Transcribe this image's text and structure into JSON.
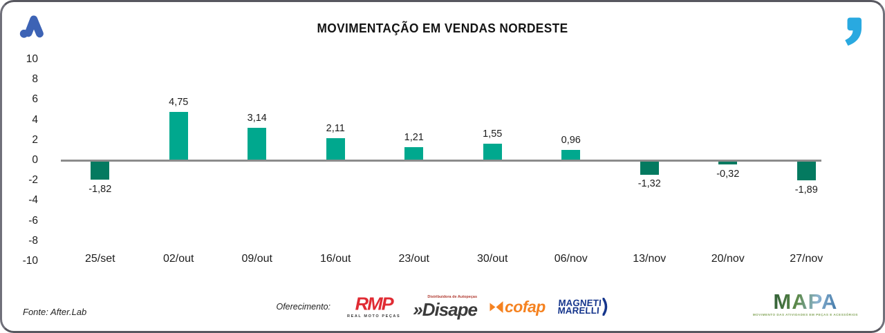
{
  "header": {
    "title": "MOVIMENTAÇÃO EM VENDAS NORDESTE",
    "brand_color": "#3D63B5",
    "quote_color": "#29A9E0"
  },
  "chart_data": {
    "type": "bar",
    "title": "MOVIMENTAÇÃO EM VENDAS NORDESTE",
    "categories": [
      "25/set",
      "02/out",
      "09/out",
      "16/out",
      "23/out",
      "30/out",
      "06/nov",
      "13/nov",
      "20/nov",
      "27/nov"
    ],
    "values": [
      -1.82,
      4.75,
      3.14,
      2.11,
      1.21,
      1.55,
      0.96,
      -1.32,
      -0.32,
      -1.89
    ],
    "value_labels": [
      "-1,82",
      "4,75",
      "3,14",
      "2,11",
      "1,21",
      "1,55",
      "0,96",
      "-1,32",
      "-0,32",
      "-1,89"
    ],
    "ylim": [
      -10,
      10
    ],
    "ytick_step": 2,
    "grid": false,
    "legend": "none",
    "positive_color": "#00A88E",
    "negative_color": "#047A60",
    "zero_line_color": "#8C8C8C"
  },
  "footer": {
    "fonte": "Fonte: After.Lab",
    "oferecimento_label": "Oferecimento:",
    "sponsors": {
      "rmp": {
        "name": "RMP",
        "sub": "REAL MOTO PEÇAS",
        "color": "#E02B33"
      },
      "disape": {
        "name": "»Disape",
        "sub": "Distribuidora de Autopeças",
        "color": "#3B3B3B"
      },
      "cofap": {
        "name": "cofap",
        "color": "#F58220"
      },
      "magneti": {
        "line1": "MAGNETI",
        "line2": "MARELLI",
        "color": "#16368C"
      }
    },
    "mapa": {
      "name": "MAPA",
      "tagline": "MOVIMENTO DAS ATIVIDADES EM PEÇAS E ACESSÓRIOS"
    }
  }
}
